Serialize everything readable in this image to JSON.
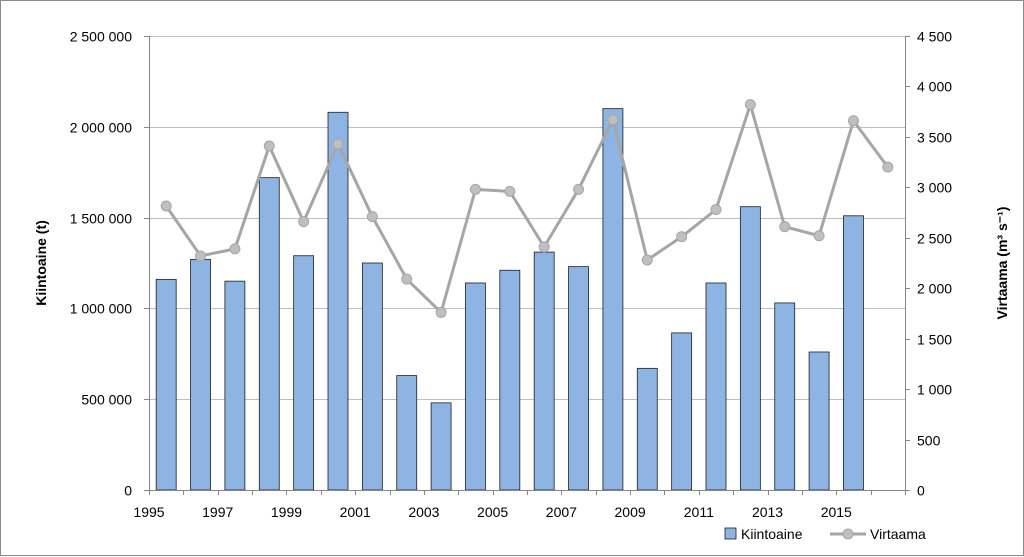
{
  "chart_data": {
    "type": "bar+line",
    "categories": [
      1995,
      1996,
      1997,
      1998,
      1999,
      2000,
      2001,
      2002,
      2003,
      2004,
      2005,
      2006,
      2007,
      2008,
      2009,
      2010,
      2011,
      2012,
      2013,
      2014,
      2015,
      2016
    ],
    "x_tick_labels": [
      "1995",
      "1997",
      "1999",
      "2001",
      "2003",
      "2005",
      "2007",
      "2009",
      "2011",
      "2013",
      "2015"
    ],
    "series": [
      {
        "name": "Kiintoaine",
        "type": "bar",
        "axis": "left",
        "values": [
          1160000,
          1270000,
          1150000,
          1720000,
          1290000,
          2080000,
          1250000,
          630000,
          480000,
          1140000,
          1210000,
          1310000,
          1230000,
          2100000,
          670000,
          865000,
          1140000,
          1560000,
          1030000,
          760000,
          1510000,
          null
        ]
      },
      {
        "name": "Virtaama",
        "type": "line",
        "axis": "right",
        "values": [
          2815,
          2320,
          2390,
          3410,
          2660,
          3430,
          2710,
          2090,
          1760,
          2980,
          2960,
          2410,
          2980,
          3670,
          2280,
          2510,
          2780,
          3820,
          2610,
          2520,
          3660,
          3200
        ]
      }
    ],
    "ylabel": "Kiintoaine  (t)",
    "y2label": "Virtaama (m³ s⁻¹)",
    "ylim": [
      0,
      2500000
    ],
    "y2lim": [
      0,
      4500
    ],
    "y_tick_labels": [
      "0",
      "500 000",
      "1 000 000",
      "1 500 000",
      "2 000 000",
      "2 500 000"
    ],
    "y2_tick_labels": [
      "0",
      "500",
      "1 000",
      "1 500",
      "2 000",
      "2 500",
      "3 000",
      "3 500",
      "4 000",
      "4 500"
    ],
    "grid": true,
    "legend_position": "bottom-right",
    "colors": {
      "bar_fill": "#8DB4E2",
      "bar_stroke": "#1F1F1F",
      "line": "#A6A6A6",
      "marker": "#BFBFBF",
      "grid": "#BFBFBF"
    }
  }
}
